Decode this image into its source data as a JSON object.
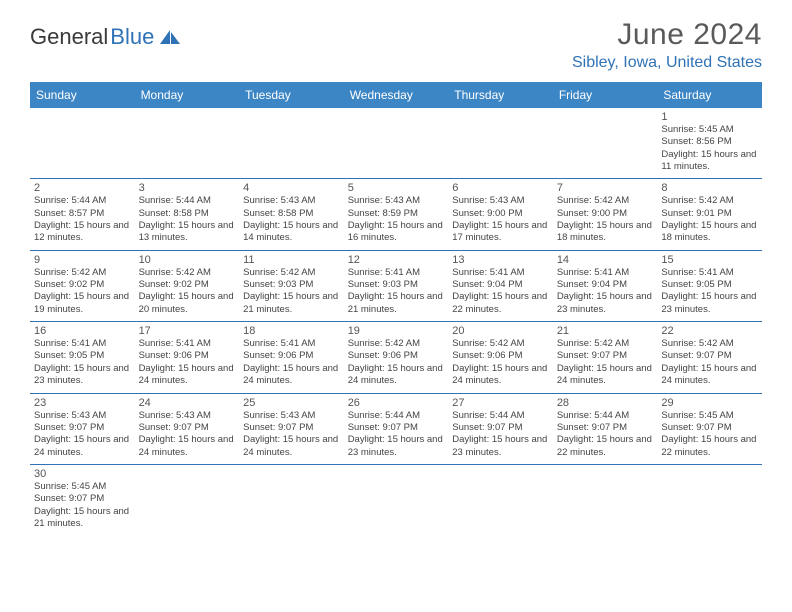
{
  "logo": {
    "text1": "General",
    "text2": "Blue"
  },
  "title": "June 2024",
  "location": "Sibley, Iowa, United States",
  "weekdays": [
    "Sunday",
    "Monday",
    "Tuesday",
    "Wednesday",
    "Thursday",
    "Friday",
    "Saturday"
  ],
  "colors": {
    "header_bg": "#3d86c6",
    "accent": "#2f73b6",
    "alt_row": "#f1f1f1"
  },
  "weeks": [
    [
      null,
      null,
      null,
      null,
      null,
      null,
      {
        "n": "1",
        "sr": "5:45 AM",
        "ss": "8:56 PM",
        "dl": "15 hours and 11 minutes."
      }
    ],
    [
      {
        "n": "2",
        "sr": "5:44 AM",
        "ss": "8:57 PM",
        "dl": "15 hours and 12 minutes."
      },
      {
        "n": "3",
        "sr": "5:44 AM",
        "ss": "8:58 PM",
        "dl": "15 hours and 13 minutes."
      },
      {
        "n": "4",
        "sr": "5:43 AM",
        "ss": "8:58 PM",
        "dl": "15 hours and 14 minutes."
      },
      {
        "n": "5",
        "sr": "5:43 AM",
        "ss": "8:59 PM",
        "dl": "15 hours and 16 minutes."
      },
      {
        "n": "6",
        "sr": "5:43 AM",
        "ss": "9:00 PM",
        "dl": "15 hours and 17 minutes."
      },
      {
        "n": "7",
        "sr": "5:42 AM",
        "ss": "9:00 PM",
        "dl": "15 hours and 18 minutes."
      },
      {
        "n": "8",
        "sr": "5:42 AM",
        "ss": "9:01 PM",
        "dl": "15 hours and 18 minutes."
      }
    ],
    [
      {
        "n": "9",
        "sr": "5:42 AM",
        "ss": "9:02 PM",
        "dl": "15 hours and 19 minutes."
      },
      {
        "n": "10",
        "sr": "5:42 AM",
        "ss": "9:02 PM",
        "dl": "15 hours and 20 minutes."
      },
      {
        "n": "11",
        "sr": "5:42 AM",
        "ss": "9:03 PM",
        "dl": "15 hours and 21 minutes."
      },
      {
        "n": "12",
        "sr": "5:41 AM",
        "ss": "9:03 PM",
        "dl": "15 hours and 21 minutes."
      },
      {
        "n": "13",
        "sr": "5:41 AM",
        "ss": "9:04 PM",
        "dl": "15 hours and 22 minutes."
      },
      {
        "n": "14",
        "sr": "5:41 AM",
        "ss": "9:04 PM",
        "dl": "15 hours and 23 minutes."
      },
      {
        "n": "15",
        "sr": "5:41 AM",
        "ss": "9:05 PM",
        "dl": "15 hours and 23 minutes."
      }
    ],
    [
      {
        "n": "16",
        "sr": "5:41 AM",
        "ss": "9:05 PM",
        "dl": "15 hours and 23 minutes."
      },
      {
        "n": "17",
        "sr": "5:41 AM",
        "ss": "9:06 PM",
        "dl": "15 hours and 24 minutes."
      },
      {
        "n": "18",
        "sr": "5:41 AM",
        "ss": "9:06 PM",
        "dl": "15 hours and 24 minutes."
      },
      {
        "n": "19",
        "sr": "5:42 AM",
        "ss": "9:06 PM",
        "dl": "15 hours and 24 minutes."
      },
      {
        "n": "20",
        "sr": "5:42 AM",
        "ss": "9:06 PM",
        "dl": "15 hours and 24 minutes."
      },
      {
        "n": "21",
        "sr": "5:42 AM",
        "ss": "9:07 PM",
        "dl": "15 hours and 24 minutes."
      },
      {
        "n": "22",
        "sr": "5:42 AM",
        "ss": "9:07 PM",
        "dl": "15 hours and 24 minutes."
      }
    ],
    [
      {
        "n": "23",
        "sr": "5:43 AM",
        "ss": "9:07 PM",
        "dl": "15 hours and 24 minutes."
      },
      {
        "n": "24",
        "sr": "5:43 AM",
        "ss": "9:07 PM",
        "dl": "15 hours and 24 minutes."
      },
      {
        "n": "25",
        "sr": "5:43 AM",
        "ss": "9:07 PM",
        "dl": "15 hours and 24 minutes."
      },
      {
        "n": "26",
        "sr": "5:44 AM",
        "ss": "9:07 PM",
        "dl": "15 hours and 23 minutes."
      },
      {
        "n": "27",
        "sr": "5:44 AM",
        "ss": "9:07 PM",
        "dl": "15 hours and 23 minutes."
      },
      {
        "n": "28",
        "sr": "5:44 AM",
        "ss": "9:07 PM",
        "dl": "15 hours and 22 minutes."
      },
      {
        "n": "29",
        "sr": "5:45 AM",
        "ss": "9:07 PM",
        "dl": "15 hours and 22 minutes."
      }
    ],
    [
      {
        "n": "30",
        "sr": "5:45 AM",
        "ss": "9:07 PM",
        "dl": "15 hours and 21 minutes."
      },
      null,
      null,
      null,
      null,
      null,
      null
    ]
  ],
  "labels": {
    "sunrise": "Sunrise: ",
    "sunset": "Sunset: ",
    "daylight": "Daylight: "
  }
}
